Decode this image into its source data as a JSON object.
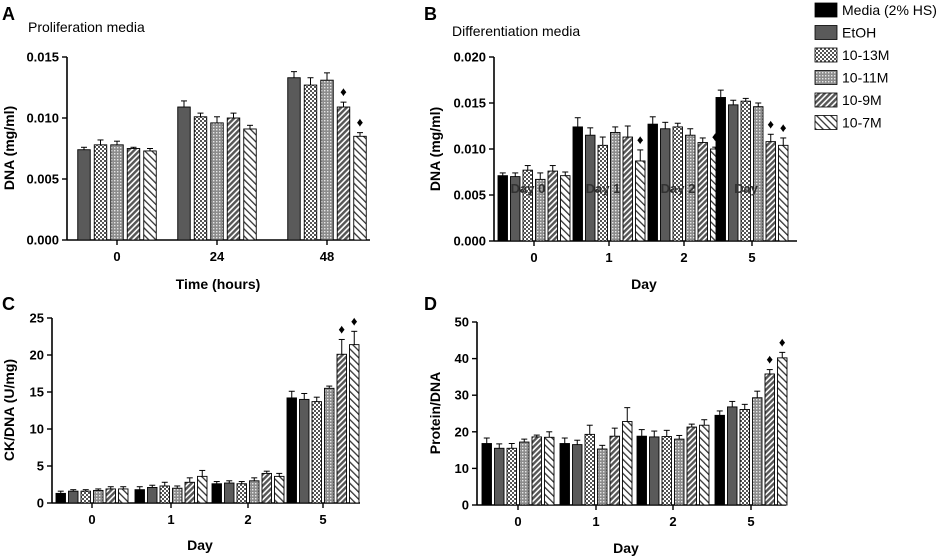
{
  "legend": {
    "entries": [
      "Media (2% HS)",
      "EtOH",
      "10-13M",
      "10-11M",
      "10-9M",
      "10-7M"
    ],
    "placement": "top-right"
  },
  "marker_symbol": "♦",
  "chart_data": [
    {
      "panel": "A",
      "type": "bar",
      "subtitle": "Proliferation media",
      "xlabel": "Time (hours)",
      "ylabel": "DNA (mg/ml)",
      "ylim": [
        0,
        0.015
      ],
      "yticks": [
        0,
        0.005,
        0.01,
        0.015
      ],
      "ytick_labels": [
        "0.000",
        "0.005",
        "0.010",
        "0.015"
      ],
      "categories": [
        "0",
        "24",
        "48"
      ],
      "series": [
        {
          "name": "EtOH",
          "pattern": "dgray",
          "values": [
            0.0074,
            0.0109,
            0.0133
          ],
          "errors": [
            0.0002,
            0.0005,
            0.0005
          ]
        },
        {
          "name": "10-13M",
          "pattern": "check",
          "values": [
            0.0078,
            0.0101,
            0.0127
          ],
          "errors": [
            0.0004,
            0.0003,
            0.0006
          ]
        },
        {
          "name": "10-11M",
          "pattern": "dots",
          "values": [
            0.0078,
            0.0096,
            0.0131
          ],
          "errors": [
            0.0003,
            0.0005,
            0.0006
          ]
        },
        {
          "name": "10-9M",
          "pattern": "ddiag",
          "values": [
            0.0075,
            0.01,
            0.0109
          ],
          "errors": [
            0.0001,
            0.0004,
            0.0004
          ]
        },
        {
          "name": "10-7M",
          "pattern": "ldiag",
          "values": [
            0.0073,
            0.0091,
            0.0085
          ],
          "errors": [
            0.0002,
            0.0003,
            0.0003
          ]
        }
      ],
      "markers": [
        {
          "category": "48",
          "series": "10-9M"
        },
        {
          "category": "48",
          "series": "10-7M"
        }
      ]
    },
    {
      "panel": "B",
      "type": "bar",
      "subtitle": "Differentiation media",
      "xlabel": "Day",
      "ylabel": "DNA (mg/ml)",
      "ylim": [
        0,
        0.02
      ],
      "yticks": [
        0,
        0.005,
        0.01,
        0.015,
        0.02
      ],
      "ytick_labels": [
        "0.000",
        "0.005",
        "0.010",
        "0.015",
        "0.020"
      ],
      "categories": [
        "0",
        "1",
        "2",
        "5"
      ],
      "overlay_text": [
        "Day 0",
        "Day 1",
        "Day 2",
        "Day"
      ],
      "series": [
        {
          "name": "Media (2% HS)",
          "pattern": "black",
          "values": [
            0.0071,
            0.0124,
            0.0127,
            0.0156
          ],
          "errors": [
            0.0003,
            0.001,
            0.0008,
            0.0008
          ]
        },
        {
          "name": "EtOH",
          "pattern": "dgray",
          "values": [
            0.007,
            0.0115,
            0.0122,
            0.0148
          ],
          "errors": [
            0.0004,
            0.0008,
            0.0007,
            0.0005
          ]
        },
        {
          "name": "10-13M",
          "pattern": "check",
          "values": [
            0.0077,
            0.0104,
            0.0124,
            0.0152
          ],
          "errors": [
            0.0005,
            0.0009,
            0.0004,
            0.0003
          ]
        },
        {
          "name": "10-11M",
          "pattern": "dots",
          "values": [
            0.0067,
            0.0118,
            0.0115,
            0.0146
          ],
          "errors": [
            0.0007,
            0.0006,
            0.0007,
            0.0004
          ]
        },
        {
          "name": "10-9M",
          "pattern": "ddiag",
          "values": [
            0.0076,
            0.0113,
            0.0107,
            0.0108
          ],
          "errors": [
            0.0006,
            0.0012,
            0.0005,
            0.0008
          ]
        },
        {
          "name": "10-7M",
          "pattern": "ldiag",
          "values": [
            0.0071,
            0.0087,
            0.01,
            0.0104
          ],
          "errors": [
            0.0004,
            0.0012,
            0.0002,
            0.0008
          ]
        }
      ],
      "markers": [
        {
          "category": "1",
          "series": "10-7M"
        },
        {
          "category": "2",
          "series": "10-7M"
        },
        {
          "category": "5",
          "series": "10-9M"
        },
        {
          "category": "5",
          "series": "10-7M"
        }
      ]
    },
    {
      "panel": "C",
      "type": "bar",
      "subtitle": "",
      "xlabel": "Day",
      "ylabel": "CK/DNA (U/mg)",
      "ylim": [
        0,
        25
      ],
      "yticks": [
        0,
        5,
        10,
        15,
        20,
        25
      ],
      "ytick_labels": [
        "0",
        "5",
        "10",
        "15",
        "20",
        "25"
      ],
      "categories": [
        "0",
        "1",
        "2",
        "5"
      ],
      "series": [
        {
          "name": "Media (2% HS)",
          "pattern": "black",
          "values": [
            1.3,
            1.8,
            2.6,
            14.2
          ],
          "errors": [
            0.3,
            0.4,
            0.3,
            0.9
          ]
        },
        {
          "name": "EtOH",
          "pattern": "dgray",
          "values": [
            1.6,
            2.1,
            2.7,
            14.0
          ],
          "errors": [
            0.2,
            0.3,
            0.3,
            0.8
          ]
        },
        {
          "name": "10-13M",
          "pattern": "check",
          "values": [
            1.6,
            2.3,
            2.6,
            13.7
          ],
          "errors": [
            0.2,
            0.5,
            0.3,
            0.6
          ]
        },
        {
          "name": "10-11M",
          "pattern": "dots",
          "values": [
            1.7,
            2.0,
            3.0,
            15.5
          ],
          "errors": [
            0.2,
            0.3,
            0.4,
            0.3
          ]
        },
        {
          "name": "10-9M",
          "pattern": "ddiag",
          "values": [
            1.9,
            2.8,
            4.0,
            20.1
          ],
          "errors": [
            0.3,
            0.6,
            0.3,
            2.0
          ]
        },
        {
          "name": "10-7M",
          "pattern": "ldiag",
          "values": [
            1.9,
            3.6,
            3.6,
            21.4
          ],
          "errors": [
            0.3,
            0.8,
            0.4,
            1.8
          ]
        }
      ],
      "markers": [
        {
          "category": "5",
          "series": "10-9M"
        },
        {
          "category": "5",
          "series": "10-7M"
        }
      ]
    },
    {
      "panel": "D",
      "type": "bar",
      "subtitle": "",
      "xlabel": "Day",
      "ylabel": "Protein/DNA",
      "ylim": [
        0,
        50
      ],
      "yticks": [
        0,
        10,
        20,
        30,
        40,
        50
      ],
      "ytick_labels": [
        "0",
        "10",
        "20",
        "30",
        "40",
        "50"
      ],
      "categories": [
        "0",
        "1",
        "2",
        "5"
      ],
      "series": [
        {
          "name": "Media (2% HS)",
          "pattern": "black",
          "values": [
            16.8,
            16.8,
            18.8,
            24.5
          ],
          "errors": [
            1.5,
            1.5,
            1.8,
            1.2
          ]
        },
        {
          "name": "EtOH",
          "pattern": "dgray",
          "values": [
            15.5,
            16.5,
            18.6,
            26.8
          ],
          "errors": [
            1.2,
            1.2,
            1.6,
            1.5
          ]
        },
        {
          "name": "10-13M",
          "pattern": "check",
          "values": [
            15.5,
            19.3,
            18.7,
            26.1
          ],
          "errors": [
            1.3,
            2.5,
            1.7,
            1.4
          ]
        },
        {
          "name": "10-11M",
          "pattern": "dots",
          "values": [
            17.2,
            15.3,
            18.0,
            29.3
          ],
          "errors": [
            0.8,
            1.0,
            1.0,
            1.8
          ]
        },
        {
          "name": "10-9M",
          "pattern": "ddiag",
          "values": [
            18.6,
            18.8,
            21.3,
            35.8
          ],
          "errors": [
            0.5,
            2.2,
            0.8,
            1.2
          ]
        },
        {
          "name": "10-7M",
          "pattern": "ldiag",
          "values": [
            18.5,
            22.8,
            21.8,
            40.2
          ],
          "errors": [
            1.5,
            3.8,
            1.5,
            1.5
          ]
        }
      ],
      "markers": [
        {
          "category": "5",
          "series": "10-9M"
        },
        {
          "category": "5",
          "series": "10-7M"
        }
      ]
    }
  ]
}
